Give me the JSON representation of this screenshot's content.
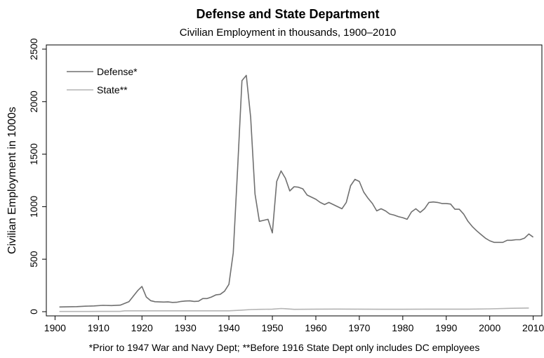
{
  "chart_data": {
    "type": "line",
    "title": "Defense and State Department",
    "subtitle": "Civilian Employment in thousands, 1900–2010",
    "ylabel": "Civilian Employment in 1000s",
    "xlabel": "",
    "footnote": "*Prior to 1947 War and Navy Dept; **Before 1916 State Dept only includes DC employees",
    "xlim": [
      1898,
      2012
    ],
    "ylim": [
      -40,
      2540
    ],
    "x_ticks": [
      1900,
      1910,
      1920,
      1930,
      1940,
      1950,
      1960,
      1970,
      1980,
      1990,
      2000,
      2010
    ],
    "y_ticks": [
      0,
      500,
      1000,
      1500,
      2000,
      2500
    ],
    "legend": {
      "position": "top-left"
    },
    "series": [
      {
        "name": "Defense*",
        "color": "#707070",
        "x": [
          1901,
          1903,
          1905,
          1907,
          1909,
          1911,
          1913,
          1915,
          1917,
          1919,
          1920,
          1921,
          1922,
          1923,
          1924,
          1925,
          1926,
          1927,
          1928,
          1929,
          1930,
          1931,
          1932,
          1933,
          1934,
          1935,
          1936,
          1937,
          1938,
          1939,
          1940,
          1941,
          1942,
          1943,
          1944,
          1945,
          1946,
          1947,
          1948,
          1949,
          1950,
          1951,
          1952,
          1953,
          1954,
          1955,
          1956,
          1957,
          1958,
          1959,
          1960,
          1961,
          1962,
          1963,
          1964,
          1965,
          1966,
          1967,
          1968,
          1969,
          1970,
          1971,
          1972,
          1973,
          1974,
          1975,
          1976,
          1977,
          1978,
          1979,
          1980,
          1981,
          1982,
          1983,
          1984,
          1985,
          1986,
          1987,
          1988,
          1989,
          1990,
          1991,
          1992,
          1993,
          1994,
          1995,
          1996,
          1997,
          1998,
          1999,
          2000,
          2001,
          2002,
          2003,
          2004,
          2005,
          2006,
          2007,
          2008,
          2009,
          2010
        ],
        "values": [
          45,
          46,
          48,
          52,
          55,
          60,
          58,
          62,
          95,
          200,
          240,
          140,
          105,
          95,
          93,
          92,
          93,
          88,
          90,
          98,
          102,
          103,
          98,
          100,
          125,
          125,
          140,
          160,
          165,
          195,
          260,
          560,
          1360,
          2200,
          2250,
          1850,
          1120,
          860,
          870,
          880,
          750,
          1240,
          1340,
          1270,
          1150,
          1190,
          1185,
          1170,
          1110,
          1090,
          1070,
          1040,
          1020,
          1040,
          1020,
          1000,
          980,
          1040,
          1200,
          1260,
          1240,
          1140,
          1080,
          1030,
          960,
          980,
          960,
          930,
          920,
          905,
          895,
          880,
          950,
          980,
          945,
          980,
          1040,
          1045,
          1040,
          1030,
          1030,
          1025,
          975,
          975,
          930,
          860,
          810,
          770,
          735,
          700,
          675,
          660,
          660,
          660,
          680,
          680,
          685,
          685,
          700,
          740,
          710
        ]
      },
      {
        "name": "State**",
        "color": "#b4b4b4",
        "x": [
          1901,
          1905,
          1910,
          1915,
          1916,
          1920,
          1925,
          1930,
          1935,
          1940,
          1943,
          1945,
          1947,
          1950,
          1952,
          1953,
          1955,
          1960,
          1965,
          1970,
          1975,
          1980,
          1985,
          1990,
          1995,
          2000,
          2005,
          2009
        ],
        "values": [
          2,
          2,
          3,
          3,
          8,
          8,
          8,
          8,
          8,
          8,
          15,
          20,
          22,
          24,
          30,
          28,
          22,
          24,
          25,
          24,
          23,
          23,
          24,
          24,
          24,
          27,
          32,
          35
        ]
      }
    ]
  }
}
